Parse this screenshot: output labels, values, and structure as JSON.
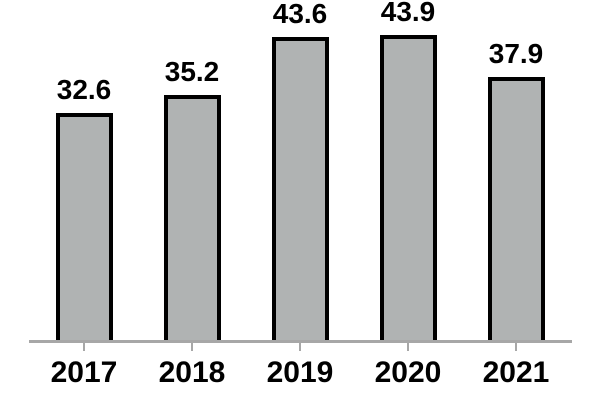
{
  "chart_data": {
    "type": "bar",
    "categories": [
      "2017",
      "2018",
      "2019",
      "2020",
      "2021"
    ],
    "values": [
      32.6,
      35.2,
      43.6,
      43.9,
      37.9
    ],
    "value_labels": [
      "32.6",
      "35.2",
      "43.6",
      "43.9",
      "37.9"
    ],
    "title": "",
    "xlabel": "",
    "ylabel": "",
    "ylim": [
      0,
      49
    ],
    "grid": false,
    "legend": false,
    "colors": {
      "bar_fill": "#b0b3b3",
      "bar_border": "#000000",
      "axis_line": "#a7a7a7",
      "tick": "#a7a7a7",
      "text": "#000000"
    }
  }
}
